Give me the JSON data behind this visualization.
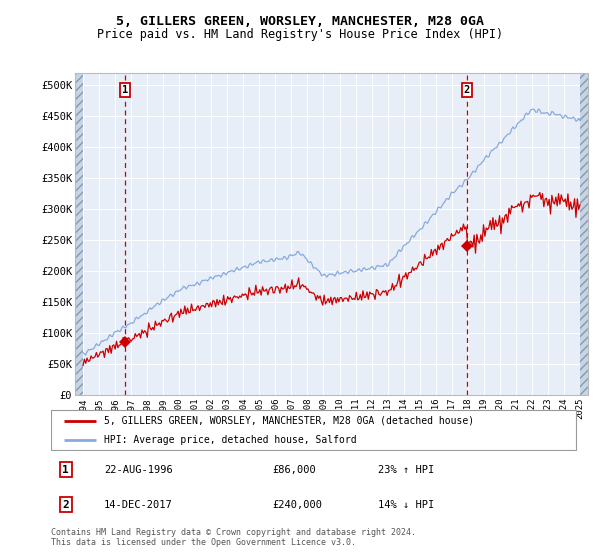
{
  "title1": "5, GILLERS GREEN, WORSLEY, MANCHESTER, M28 0GA",
  "title2": "Price paid vs. HM Land Registry's House Price Index (HPI)",
  "legend_line1": "5, GILLERS GREEN, WORSLEY, MANCHESTER, M28 0GA (detached house)",
  "legend_line2": "HPI: Average price, detached house, Salford",
  "annotation1_label": "1",
  "annotation1_date": "22-AUG-1996",
  "annotation1_price": "£86,000",
  "annotation1_hpi": "23% ↑ HPI",
  "annotation2_label": "2",
  "annotation2_date": "14-DEC-2017",
  "annotation2_price": "£240,000",
  "annotation2_hpi": "14% ↓ HPI",
  "footer": "Contains HM Land Registry data © Crown copyright and database right 2024.\nThis data is licensed under the Open Government Licence v3.0.",
  "sale1_x": 1996.63,
  "sale1_y": 86000,
  "sale2_x": 2017.95,
  "sale2_y": 240000,
  "price_line_color": "#cc0000",
  "hpi_line_color": "#88aadd",
  "sale_marker_color": "#cc0000",
  "dashed_line_color": "#cc0000",
  "plot_bg_color": "#e8eef8",
  "ylim": [
    0,
    520000
  ],
  "xlim_left": 1993.5,
  "xlim_right": 2025.5,
  "yticks": [
    0,
    50000,
    100000,
    150000,
    200000,
    250000,
    300000,
    350000,
    400000,
    450000,
    500000
  ],
  "xticks": [
    1994,
    1995,
    1996,
    1997,
    1998,
    1999,
    2000,
    2001,
    2002,
    2003,
    2004,
    2005,
    2006,
    2007,
    2008,
    2009,
    2010,
    2011,
    2012,
    2013,
    2014,
    2015,
    2016,
    2017,
    2018,
    2019,
    2020,
    2021,
    2022,
    2023,
    2024,
    2025
  ]
}
